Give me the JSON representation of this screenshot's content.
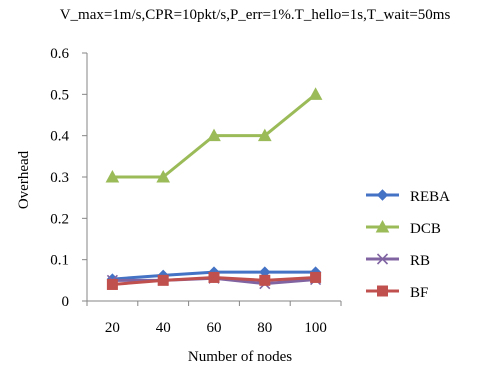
{
  "chart_data": {
    "type": "line",
    "title": "V_max=1m/s,CPR=10pkt/s,P_err=1%.T_hello=1s,T_wait=50ms",
    "xlabel": "Number of nodes",
    "ylabel": "Overhead",
    "categories": [
      "20",
      "40",
      "60",
      "80",
      "100"
    ],
    "yticks": [
      "0",
      "0.1",
      "0.2",
      "0.3",
      "0.4",
      "0.5",
      "0.6"
    ],
    "ylim": [
      0,
      0.6
    ],
    "grid": false,
    "legend_position": "right",
    "series": [
      {
        "name": "REBA",
        "color": "#4472c4",
        "marker": "diamond",
        "values": [
          0.053,
          0.062,
          0.07,
          0.07,
          0.07
        ]
      },
      {
        "name": "DCB",
        "color": "#9bbb59",
        "marker": "triangle",
        "values": [
          0.3,
          0.3,
          0.4,
          0.4,
          0.5
        ]
      },
      {
        "name": "RB",
        "color": "#8064a2",
        "marker": "x",
        "values": [
          0.05,
          0.05,
          0.055,
          0.042,
          0.052
        ]
      },
      {
        "name": "BF",
        "color": "#c0504d",
        "marker": "square",
        "values": [
          0.04,
          0.05,
          0.057,
          0.05,
          0.057
        ]
      }
    ]
  }
}
